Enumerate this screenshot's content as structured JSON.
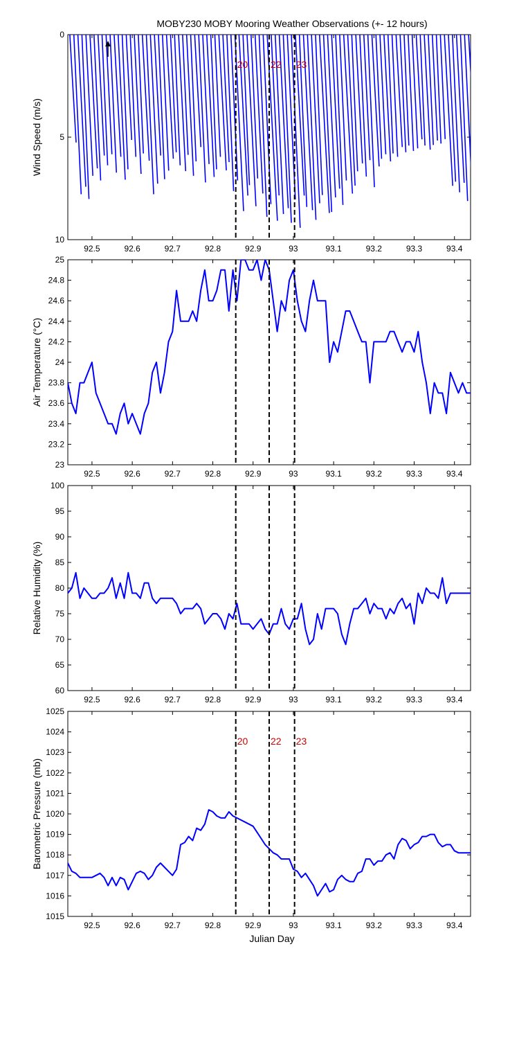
{
  "figure": {
    "title": "MOBY230 MOBY Mooring Weather Observations (+- 12 hours)",
    "xlabel": "Julian Day"
  },
  "colors": {
    "series": "#0000ff",
    "marker": "#000000",
    "marker_label": "#cc0000",
    "axes": "#000000"
  },
  "chart_data": [
    {
      "type": "line",
      "variant": "wind-vector-stick",
      "ylabel": "Wind Speed (m/s)",
      "ylim": [
        10,
        0
      ],
      "yticks": [
        0,
        5,
        10
      ],
      "xlim": [
        92.44,
        93.44
      ],
      "xticks": [
        92.5,
        92.6,
        92.7,
        92.8,
        92.9,
        93.0,
        93.1,
        93.2,
        93.3,
        93.4
      ],
      "xtick_labels": [
        "92.5",
        "92.6",
        "92.7",
        "92.8",
        "92.9",
        "93",
        "93.1",
        "93.2",
        "93.3",
        "93.4"
      ],
      "x": [
        92.445,
        92.455,
        92.465,
        92.475,
        92.485,
        92.495,
        92.505,
        92.515,
        92.525,
        92.535,
        92.545,
        92.555,
        92.565,
        92.575,
        92.585,
        92.595,
        92.605,
        92.615,
        92.625,
        92.635,
        92.645,
        92.655,
        92.665,
        92.675,
        92.685,
        92.695,
        92.705,
        92.715,
        92.725,
        92.735,
        92.745,
        92.755,
        92.765,
        92.775,
        92.785,
        92.795,
        92.805,
        92.815,
        92.825,
        92.835,
        92.845,
        92.855,
        92.865,
        92.875,
        92.885,
        92.895,
        92.905,
        92.915,
        92.925,
        92.935,
        92.945,
        92.955,
        92.965,
        92.975,
        92.985,
        92.995,
        93.005,
        93.015,
        93.025,
        93.035,
        93.045,
        93.055,
        93.065,
        93.075,
        93.085,
        93.095,
        93.105,
        93.115,
        93.125,
        93.135,
        93.145,
        93.155,
        93.165,
        93.175,
        93.185,
        93.195,
        93.205,
        93.215,
        93.225,
        93.235,
        93.245,
        93.255,
        93.265,
        93.275,
        93.285,
        93.295,
        93.305,
        93.315,
        93.325,
        93.335,
        93.345,
        93.355,
        93.365,
        93.375,
        93.385,
        93.395,
        93.405,
        93.415,
        93.425,
        93.435
      ],
      "speed": [
        5.6,
        8.1,
        7.8,
        8.3,
        7.2,
        6.9,
        7.4,
        6.2,
        6.6,
        6.1,
        7.0,
        6.3,
        7.4,
        6.8,
        5.4,
        6.2,
        7.1,
        6.0,
        6.5,
        8.1,
        7.6,
        6.2,
        7.3,
        6.9,
        6.4,
        6.0,
        6.6,
        7.0,
        6.1,
        7.2,
        6.4,
        5.8,
        7.5,
        6.6,
        7.3,
        6.8,
        6.2,
        7.0,
        6.5,
        7.9,
        7.4,
        9.0,
        8.3,
        7.6,
        8.8,
        7.3,
        8.1,
        9.2,
        8.6,
        9.6,
        8.2,
        9.1,
        8.9,
        9.5,
        8.4,
        9.8,
        8.3,
        8.7,
        9.0,
        9.4,
        8.6,
        8.1,
        9.2,
        9.0,
        8.3,
        7.9,
        8.6,
        7.4,
        8.2,
        7.7,
        6.9,
        6.6,
        7.2,
        6.4,
        7.7,
        6.8,
        6.3,
        6.1,
        6.5,
        6.0,
        6.2,
        5.8,
        6.0,
        5.6,
        5.9,
        5.8,
        5.4,
        5.6,
        5.9,
        5.6,
        5.4,
        5.5,
        5.3,
        7.8,
        7.5,
        8.0,
        7.6,
        8.4,
        8.8,
        7.2
      ],
      "direction_deg": [
        200,
        196,
        198,
        195,
        197,
        199,
        196,
        198,
        195,
        197,
        196,
        199,
        197,
        195,
        198,
        196,
        197,
        195,
        199,
        196,
        197,
        198,
        195,
        196,
        199,
        197,
        195,
        198,
        196,
        197,
        195,
        199,
        196,
        197,
        198,
        195,
        196,
        199,
        197,
        195,
        196,
        197,
        199,
        195,
        198,
        196,
        197,
        195,
        196,
        199,
        197,
        196,
        198,
        195,
        197,
        196,
        199,
        195,
        198,
        196,
        197,
        195,
        199,
        196,
        197,
        198,
        195,
        196,
        199,
        197,
        195,
        198,
        196,
        197,
        195,
        199,
        196,
        197,
        198,
        195,
        196,
        199,
        197,
        195,
        196,
        197,
        199,
        195,
        198,
        196,
        197,
        195,
        196,
        199,
        197,
        196,
        198,
        195,
        197,
        200
      ],
      "markers": [
        {
          "x": 92.857,
          "label": "20"
        },
        {
          "x": 92.94,
          "label": "22"
        },
        {
          "x": 93.003,
          "label": "23"
        }
      ]
    },
    {
      "type": "line",
      "ylabel": "Air Temperature (°C)",
      "ylim": [
        23,
        25
      ],
      "yticks": [
        23,
        23.2,
        23.4,
        23.6,
        23.8,
        24,
        24.2,
        24.4,
        24.6,
        24.8,
        25
      ],
      "ytick_labels": [
        "23",
        "23.2",
        "23.4",
        "23.6",
        "23.8",
        "24",
        "24.2",
        "24.4",
        "24.6",
        "24.8",
        "25"
      ],
      "xlim": [
        92.44,
        93.44
      ],
      "xticks": [
        92.5,
        92.6,
        92.7,
        92.8,
        92.9,
        93.0,
        93.1,
        93.2,
        93.3,
        93.4
      ],
      "xtick_labels": [
        "92.5",
        "92.6",
        "92.7",
        "92.8",
        "92.9",
        "93",
        "93.1",
        "93.2",
        "93.3",
        "93.4"
      ],
      "x": [
        92.44,
        92.45,
        92.46,
        92.47,
        92.48,
        92.49,
        92.5,
        92.51,
        92.52,
        92.53,
        92.54,
        92.55,
        92.56,
        92.57,
        92.58,
        92.59,
        92.6,
        92.61,
        92.62,
        92.63,
        92.64,
        92.65,
        92.66,
        92.67,
        92.68,
        92.69,
        92.7,
        92.71,
        92.72,
        92.73,
        92.74,
        92.75,
        92.76,
        92.77,
        92.78,
        92.79,
        92.8,
        92.81,
        92.82,
        92.83,
        92.84,
        92.85,
        92.86,
        92.87,
        92.88,
        92.89,
        92.9,
        92.91,
        92.92,
        92.93,
        92.94,
        92.95,
        92.96,
        92.97,
        92.98,
        92.99,
        93.0,
        93.01,
        93.02,
        93.03,
        93.04,
        93.05,
        93.06,
        93.07,
        93.08,
        93.09,
        93.1,
        93.11,
        93.12,
        93.13,
        93.14,
        93.15,
        93.16,
        93.17,
        93.18,
        93.19,
        93.2,
        93.21,
        93.22,
        93.23,
        93.24,
        93.25,
        93.26,
        93.27,
        93.28,
        93.29,
        93.3,
        93.31,
        93.32,
        93.33,
        93.34,
        93.35,
        93.36,
        93.37,
        93.38,
        93.39,
        93.4,
        93.41,
        93.42,
        93.43,
        93.44
      ],
      "y": [
        23.8,
        23.6,
        23.5,
        23.8,
        23.8,
        23.9,
        24.0,
        23.7,
        23.6,
        23.5,
        23.4,
        23.4,
        23.3,
        23.5,
        23.6,
        23.4,
        23.5,
        23.4,
        23.3,
        23.5,
        23.6,
        23.9,
        24.0,
        23.7,
        23.9,
        24.2,
        24.3,
        24.7,
        24.4,
        24.4,
        24.4,
        24.5,
        24.4,
        24.7,
        24.9,
        24.6,
        24.6,
        24.7,
        24.9,
        24.9,
        24.5,
        24.9,
        24.6,
        25.0,
        25.0,
        24.9,
        24.9,
        25.0,
        24.8,
        25.0,
        24.9,
        24.6,
        24.3,
        24.6,
        24.5,
        24.8,
        24.9,
        24.6,
        24.4,
        24.3,
        24.6,
        24.8,
        24.6,
        24.6,
        24.6,
        24.0,
        24.2,
        24.1,
        24.3,
        24.5,
        24.5,
        24.4,
        24.3,
        24.2,
        24.2,
        23.8,
        24.2,
        24.2,
        24.2,
        24.2,
        24.3,
        24.3,
        24.2,
        24.1,
        24.2,
        24.2,
        24.1,
        24.3,
        24.0,
        23.8,
        23.5,
        23.8,
        23.7,
        23.7,
        23.5,
        23.9,
        23.8,
        23.7,
        23.8,
        23.7,
        23.7
      ],
      "markers": [
        {
          "x": 92.857
        },
        {
          "x": 92.94
        },
        {
          "x": 93.003
        }
      ]
    },
    {
      "type": "line",
      "ylabel": "Relative Humidity (%)",
      "ylim": [
        60,
        100
      ],
      "yticks": [
        60,
        65,
        70,
        75,
        80,
        85,
        90,
        95,
        100
      ],
      "xlim": [
        92.44,
        93.44
      ],
      "xticks": [
        92.5,
        92.6,
        92.7,
        92.8,
        92.9,
        93.0,
        93.1,
        93.2,
        93.3,
        93.4
      ],
      "xtick_labels": [
        "92.5",
        "92.6",
        "92.7",
        "92.8",
        "92.9",
        "93",
        "93.1",
        "93.2",
        "93.3",
        "93.4"
      ],
      "x": [
        92.44,
        92.45,
        92.46,
        92.47,
        92.48,
        92.49,
        92.5,
        92.51,
        92.52,
        92.53,
        92.54,
        92.55,
        92.56,
        92.57,
        92.58,
        92.59,
        92.6,
        92.61,
        92.62,
        92.63,
        92.64,
        92.65,
        92.66,
        92.67,
        92.68,
        92.69,
        92.7,
        92.71,
        92.72,
        92.73,
        92.74,
        92.75,
        92.76,
        92.77,
        92.78,
        92.79,
        92.8,
        92.81,
        92.82,
        92.83,
        92.84,
        92.85,
        92.86,
        92.87,
        92.88,
        92.89,
        92.9,
        92.91,
        92.92,
        92.93,
        92.94,
        92.95,
        92.96,
        92.97,
        92.98,
        92.99,
        93.0,
        93.01,
        93.02,
        93.03,
        93.04,
        93.05,
        93.06,
        93.07,
        93.08,
        93.09,
        93.1,
        93.11,
        93.12,
        93.13,
        93.14,
        93.15,
        93.16,
        93.17,
        93.18,
        93.19,
        93.2,
        93.21,
        93.22,
        93.23,
        93.24,
        93.25,
        93.26,
        93.27,
        93.28,
        93.29,
        93.3,
        93.31,
        93.32,
        93.33,
        93.34,
        93.35,
        93.36,
        93.37,
        93.38,
        93.39,
        93.4,
        93.41,
        93.42,
        93.43,
        93.44
      ],
      "y": [
        79,
        80,
        83,
        78,
        80,
        79,
        78,
        78,
        79,
        79,
        80,
        82,
        78,
        81,
        78,
        83,
        79,
        79,
        78,
        81,
        81,
        78,
        77,
        78,
        78,
        78,
        78,
        77,
        75,
        76,
        76,
        76,
        77,
        76,
        73,
        74,
        75,
        75,
        74,
        72,
        75,
        74,
        77,
        73,
        73,
        73,
        72,
        73,
        74,
        72,
        71,
        73,
        73,
        76,
        73,
        72,
        74,
        74,
        77,
        72,
        69,
        70,
        75,
        72,
        76,
        76,
        76,
        75,
        71,
        69,
        73,
        76,
        76,
        77,
        78,
        75,
        77,
        76,
        76,
        74,
        76,
        75,
        77,
        78,
        76,
        77,
        73,
        79,
        77,
        80,
        79,
        79,
        78,
        82,
        77,
        79,
        79,
        79,
        79,
        79,
        79
      ],
      "markers": [
        {
          "x": 92.857
        },
        {
          "x": 92.94
        },
        {
          "x": 93.003
        }
      ]
    },
    {
      "type": "line",
      "ylabel": "Barometric Pressure (mb)",
      "ylim": [
        1015,
        1025
      ],
      "yticks": [
        1015,
        1016,
        1017,
        1018,
        1019,
        1020,
        1021,
        1022,
        1023,
        1024,
        1025
      ],
      "xlim": [
        92.44,
        93.44
      ],
      "xticks": [
        92.5,
        92.6,
        92.7,
        92.8,
        92.9,
        93.0,
        93.1,
        93.2,
        93.3,
        93.4
      ],
      "xtick_labels": [
        "92.5",
        "92.6",
        "92.7",
        "92.8",
        "92.9",
        "93",
        "93.1",
        "93.2",
        "93.3",
        "93.4"
      ],
      "x": [
        92.44,
        92.45,
        92.46,
        92.47,
        92.48,
        92.49,
        92.5,
        92.51,
        92.52,
        92.53,
        92.54,
        92.55,
        92.56,
        92.57,
        92.58,
        92.59,
        92.6,
        92.61,
        92.62,
        92.63,
        92.64,
        92.65,
        92.66,
        92.67,
        92.68,
        92.69,
        92.7,
        92.71,
        92.72,
        92.73,
        92.74,
        92.75,
        92.76,
        92.77,
        92.78,
        92.79,
        92.8,
        92.81,
        92.82,
        92.83,
        92.84,
        92.85,
        92.86,
        92.87,
        92.88,
        92.89,
        92.9,
        92.91,
        92.92,
        92.93,
        92.94,
        92.95,
        92.96,
        92.97,
        92.98,
        92.99,
        93.0,
        93.01,
        93.02,
        93.03,
        93.04,
        93.05,
        93.06,
        93.07,
        93.08,
        93.09,
        93.1,
        93.11,
        93.12,
        93.13,
        93.14,
        93.15,
        93.16,
        93.17,
        93.18,
        93.19,
        93.2,
        93.21,
        93.22,
        93.23,
        93.24,
        93.25,
        93.26,
        93.27,
        93.28,
        93.29,
        93.3,
        93.31,
        93.32,
        93.33,
        93.34,
        93.35,
        93.36,
        93.37,
        93.38,
        93.39,
        93.4,
        93.41,
        93.42,
        93.43,
        93.44
      ],
      "y": [
        1017.6,
        1017.2,
        1017.1,
        1016.9,
        1016.9,
        1016.9,
        1016.9,
        1017.0,
        1017.1,
        1016.9,
        1016.5,
        1016.9,
        1016.5,
        1016.9,
        1016.8,
        1016.3,
        1016.7,
        1017.1,
        1017.2,
        1017.1,
        1016.8,
        1017.0,
        1017.4,
        1017.6,
        1017.4,
        1017.2,
        1017.0,
        1017.3,
        1018.5,
        1018.6,
        1018.9,
        1018.7,
        1019.3,
        1019.2,
        1019.5,
        1020.2,
        1020.1,
        1019.9,
        1019.8,
        1019.8,
        1020.1,
        1019.9,
        1019.8,
        1019.7,
        1019.6,
        1019.5,
        1019.4,
        1019.1,
        1018.8,
        1018.5,
        1018.3,
        1018.1,
        1018.0,
        1017.8,
        1017.8,
        1017.8,
        1017.3,
        1017.2,
        1016.9,
        1017.1,
        1016.8,
        1016.5,
        1016.0,
        1016.3,
        1016.6,
        1016.2,
        1016.3,
        1016.8,
        1017.0,
        1016.8,
        1016.7,
        1016.7,
        1017.1,
        1017.2,
        1017.8,
        1017.8,
        1017.5,
        1017.7,
        1017.7,
        1018.0,
        1018.1,
        1017.8,
        1018.5,
        1018.8,
        1018.7,
        1018.3,
        1018.5,
        1018.6,
        1018.9,
        1018.9,
        1019.0,
        1019.0,
        1018.6,
        1018.4,
        1018.5,
        1018.5,
        1018.2,
        1018.1,
        1018.1,
        1018.1,
        1018.1
      ],
      "markers": [
        {
          "x": 92.857,
          "label": "20"
        },
        {
          "x": 92.94,
          "label": "22"
        },
        {
          "x": 93.003,
          "label": "23"
        }
      ]
    }
  ]
}
